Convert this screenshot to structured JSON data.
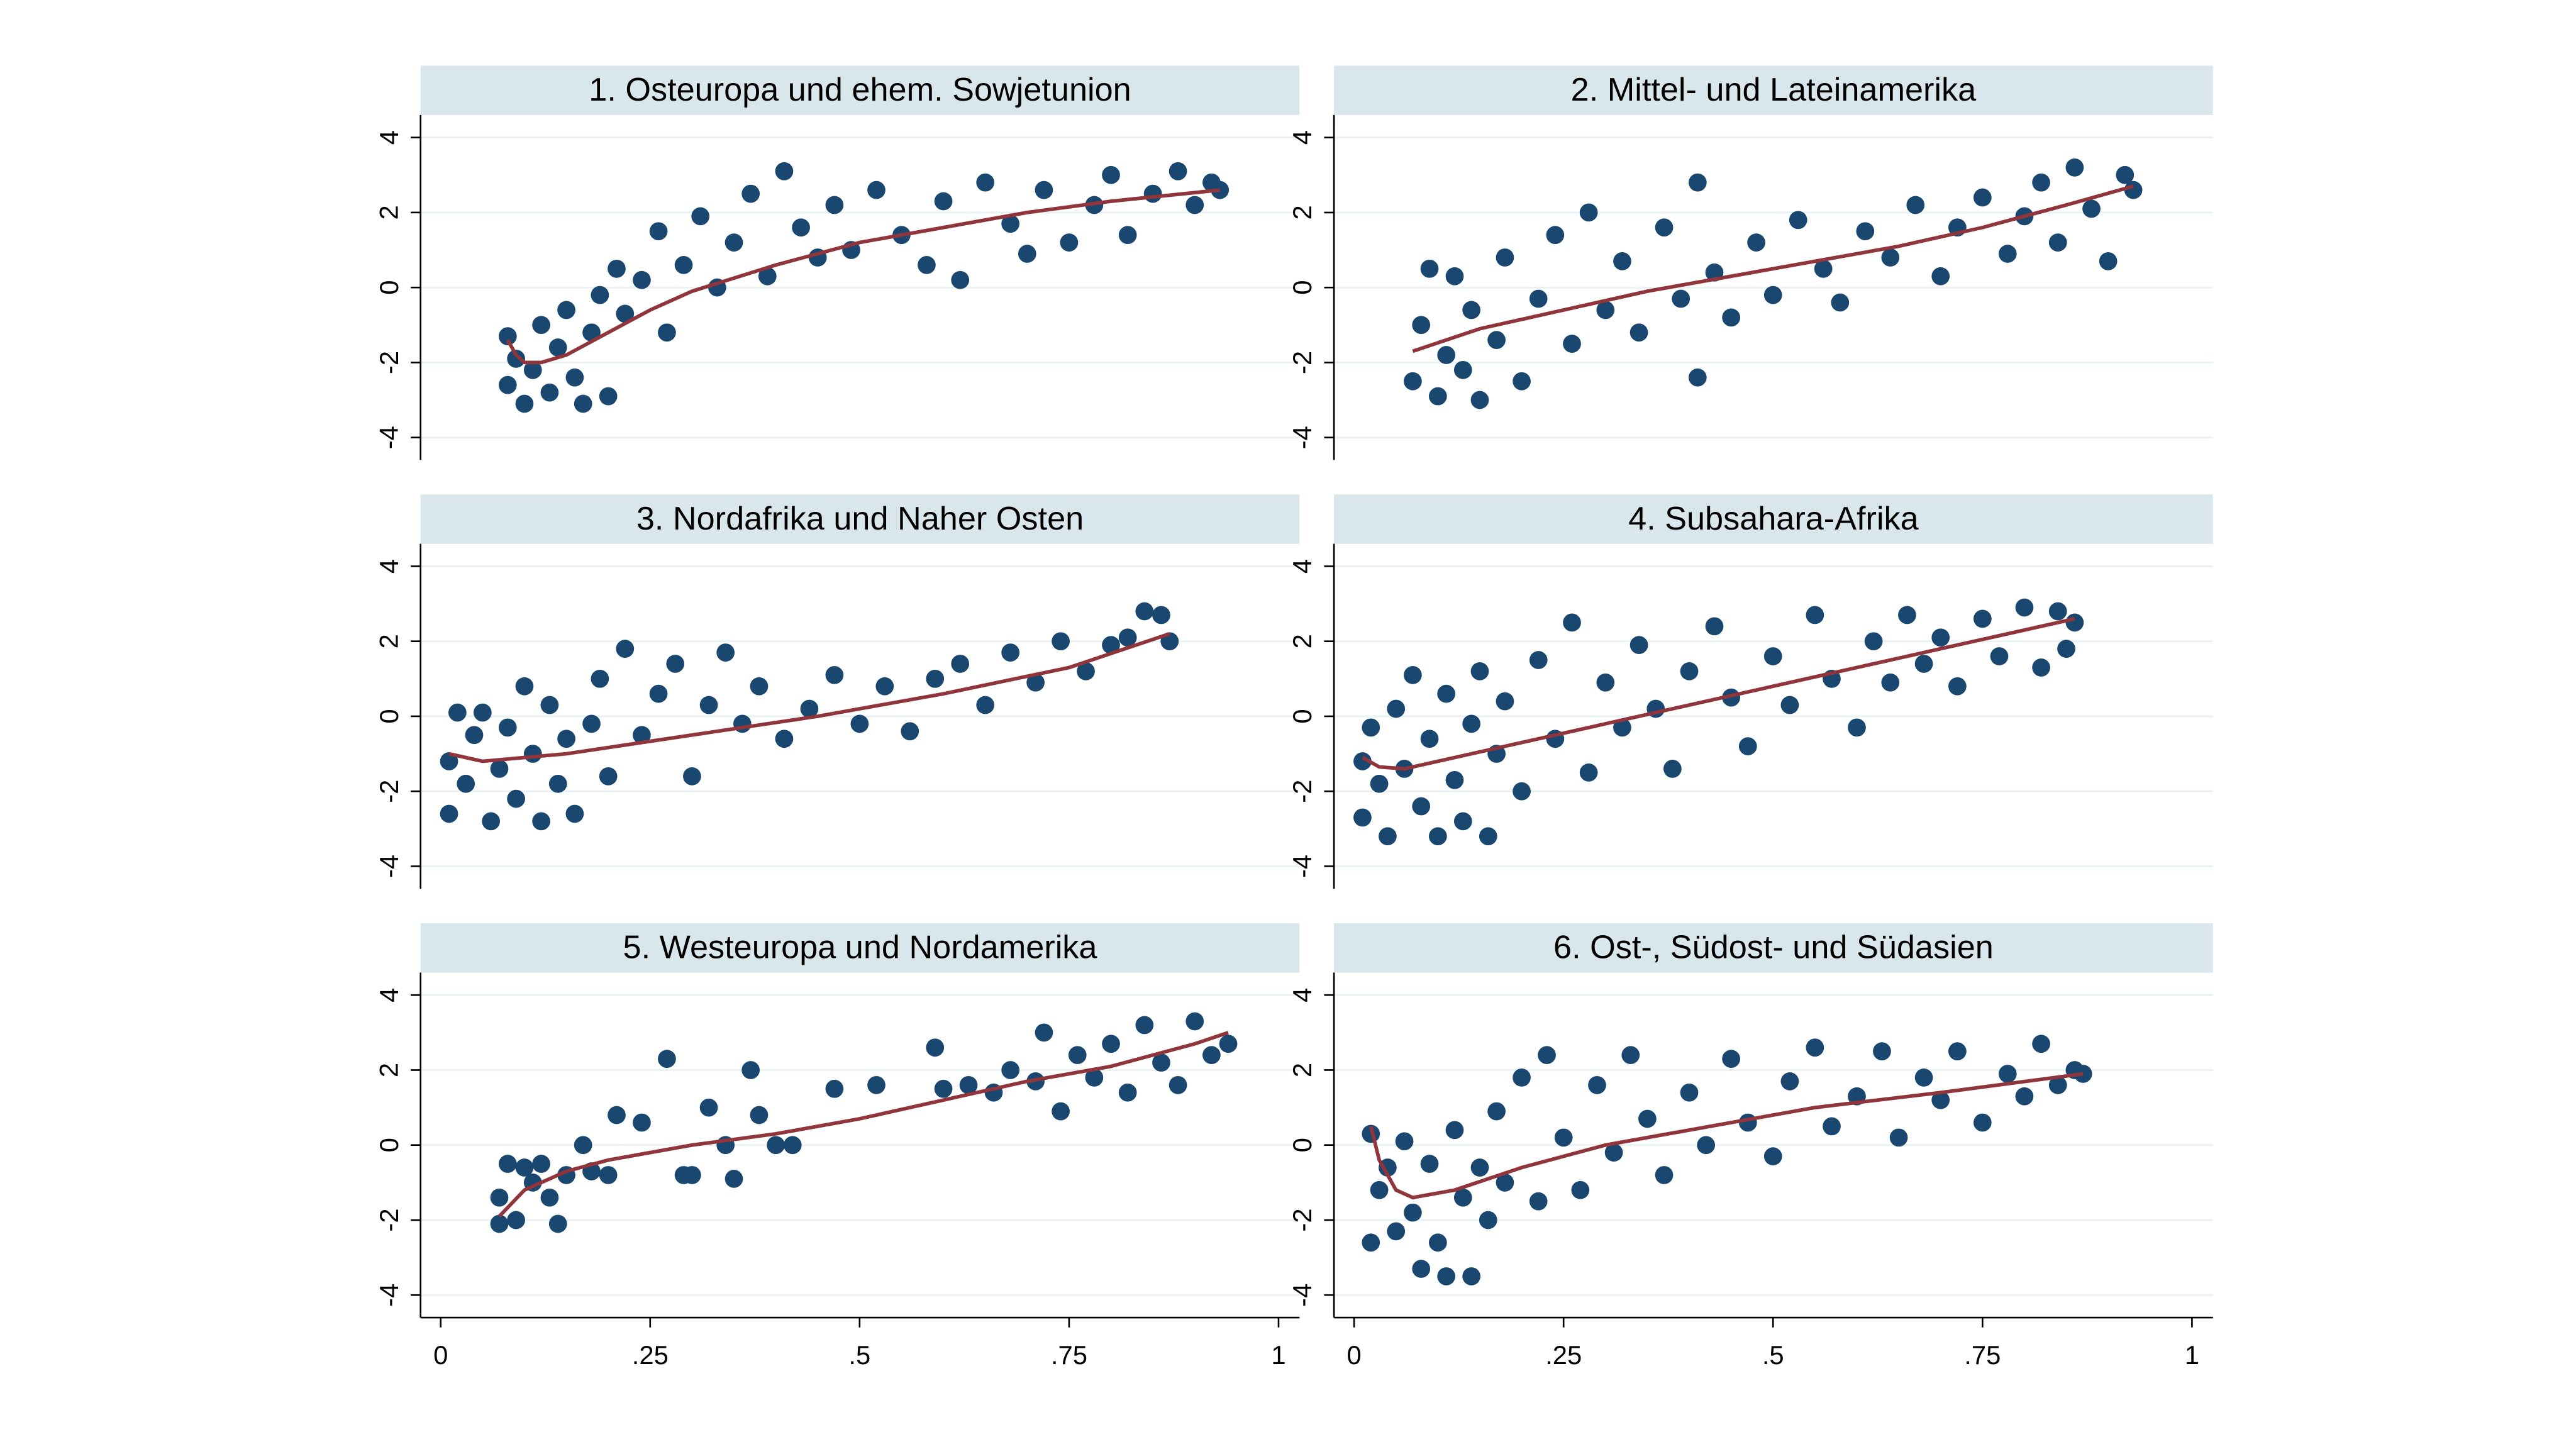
{
  "chart_data": [
    {
      "type": "scatter",
      "title": "1. Osteuropa und ehem. Sowjetunion",
      "color": "#1a476f",
      "fit_color": "#90353b",
      "grid": true,
      "xlim": [
        -0.024,
        1.025
      ],
      "ylim": [
        -4.6,
        4.6
      ],
      "yticks": [
        -4,
        -2,
        0,
        2,
        4
      ],
      "x": [
        0.08,
        0.08,
        0.09,
        0.1,
        0.11,
        0.12,
        0.13,
        0.14,
        0.15,
        0.16,
        0.17,
        0.18,
        0.19,
        0.2,
        0.21,
        0.22,
        0.24,
        0.26,
        0.27,
        0.29,
        0.31,
        0.33,
        0.35,
        0.37,
        0.39,
        0.41,
        0.43,
        0.45,
        0.47,
        0.49,
        0.52,
        0.55,
        0.58,
        0.6,
        0.62,
        0.65,
        0.68,
        0.7,
        0.72,
        0.75,
        0.78,
        0.8,
        0.82,
        0.85,
        0.88,
        0.9,
        0.92,
        0.93
      ],
      "values": [
        -1.3,
        -2.6,
        -1.9,
        -3.1,
        -2.2,
        -1.0,
        -2.8,
        -1.6,
        -0.6,
        -2.4,
        -3.1,
        -1.2,
        -0.2,
        -2.9,
        0.5,
        -0.7,
        0.2,
        1.5,
        -1.2,
        0.6,
        1.9,
        0.0,
        1.2,
        2.5,
        0.3,
        3.1,
        1.6,
        0.8,
        2.2,
        1.0,
        2.6,
        1.4,
        0.6,
        2.3,
        0.2,
        2.8,
        1.7,
        0.9,
        2.6,
        1.2,
        2.2,
        3.0,
        1.4,
        2.5,
        3.1,
        2.2,
        2.8,
        2.6
      ],
      "fit_x": [
        0.08,
        0.09,
        0.1,
        0.12,
        0.15,
        0.2,
        0.25,
        0.3,
        0.4,
        0.5,
        0.6,
        0.7,
        0.8,
        0.93
      ],
      "fit_values": [
        -1.4,
        -1.8,
        -2.0,
        -2.0,
        -1.8,
        -1.2,
        -0.6,
        -0.1,
        0.6,
        1.2,
        1.6,
        2.0,
        2.3,
        2.6
      ]
    },
    {
      "type": "scatter",
      "title": "2. Mittel- und Lateinamerika",
      "color": "#1a476f",
      "fit_color": "#90353b",
      "grid": true,
      "xlim": [
        -0.024,
        1.025
      ],
      "ylim": [
        -4.6,
        4.6
      ],
      "yticks": [
        -4,
        -2,
        0,
        2,
        4
      ],
      "x": [
        0.07,
        0.08,
        0.09,
        0.1,
        0.11,
        0.12,
        0.13,
        0.14,
        0.15,
        0.17,
        0.18,
        0.2,
        0.22,
        0.24,
        0.26,
        0.28,
        0.3,
        0.32,
        0.34,
        0.37,
        0.39,
        0.41,
        0.43,
        0.45,
        0.48,
        0.5,
        0.53,
        0.56,
        0.58,
        0.61,
        0.64,
        0.67,
        0.7,
        0.72,
        0.75,
        0.78,
        0.8,
        0.82,
        0.84,
        0.86,
        0.88,
        0.9,
        0.92,
        0.93,
        0.41
      ],
      "values": [
        -2.5,
        -1.0,
        0.5,
        -2.9,
        -1.8,
        0.3,
        -2.2,
        -0.6,
        -3.0,
        -1.4,
        0.8,
        -2.5,
        -0.3,
        1.4,
        -1.5,
        2.0,
        -0.6,
        0.7,
        -1.2,
        1.6,
        -0.3,
        2.8,
        0.4,
        -0.8,
        1.2,
        -0.2,
        1.8,
        0.5,
        -0.4,
        1.5,
        0.8,
        2.2,
        0.3,
        1.6,
        2.4,
        0.9,
        1.9,
        2.8,
        1.2,
        3.2,
        2.1,
        0.7,
        3.0,
        2.6,
        -2.4
      ],
      "fit_x": [
        0.07,
        0.15,
        0.25,
        0.35,
        0.45,
        0.55,
        0.65,
        0.75,
        0.85,
        0.93
      ],
      "fit_values": [
        -1.7,
        -1.1,
        -0.6,
        -0.1,
        0.3,
        0.7,
        1.1,
        1.6,
        2.2,
        2.7
      ]
    },
    {
      "type": "scatter",
      "title": "3. Nordafrika und Naher Osten",
      "color": "#1a476f",
      "fit_color": "#90353b",
      "grid": true,
      "xlim": [
        -0.024,
        1.025
      ],
      "ylim": [
        -4.6,
        4.6
      ],
      "yticks": [
        -4,
        -2,
        0,
        2,
        4
      ],
      "x": [
        0.01,
        0.01,
        0.02,
        0.03,
        0.04,
        0.05,
        0.06,
        0.07,
        0.08,
        0.09,
        0.1,
        0.11,
        0.12,
        0.13,
        0.14,
        0.15,
        0.16,
        0.18,
        0.19,
        0.2,
        0.22,
        0.24,
        0.26,
        0.28,
        0.3,
        0.32,
        0.34,
        0.36,
        0.38,
        0.41,
        0.44,
        0.47,
        0.5,
        0.53,
        0.56,
        0.59,
        0.62,
        0.65,
        0.68,
        0.71,
        0.74,
        0.77,
        0.8,
        0.82,
        0.84,
        0.86,
        0.87
      ],
      "values": [
        -1.2,
        -2.6,
        0.1,
        -1.8,
        -0.5,
        0.1,
        -2.8,
        -1.4,
        -0.3,
        -2.2,
        0.8,
        -1.0,
        -2.8,
        0.3,
        -1.8,
        -0.6,
        -2.6,
        -0.2,
        1.0,
        -1.6,
        1.8,
        -0.5,
        0.6,
        1.4,
        -1.6,
        0.3,
        1.7,
        -0.2,
        0.8,
        -0.6,
        0.2,
        1.1,
        -0.2,
        0.8,
        -0.4,
        1.0,
        1.4,
        0.3,
        1.7,
        0.9,
        2.0,
        1.2,
        1.9,
        2.1,
        2.8,
        2.7,
        2.0
      ],
      "fit_x": [
        0.01,
        0.05,
        0.15,
        0.3,
        0.45,
        0.6,
        0.75,
        0.87
      ],
      "fit_values": [
        -1.0,
        -1.2,
        -1.0,
        -0.5,
        0.0,
        0.6,
        1.3,
        2.2
      ]
    },
    {
      "type": "scatter",
      "title": "4. Subsahara-Afrika",
      "color": "#1a476f",
      "fit_color": "#90353b",
      "grid": true,
      "xlim": [
        -0.024,
        1.025
      ],
      "ylim": [
        -4.6,
        4.6
      ],
      "yticks": [
        -4,
        -2,
        0,
        2,
        4
      ],
      "x": [
        0.01,
        0.01,
        0.02,
        0.03,
        0.04,
        0.05,
        0.06,
        0.07,
        0.08,
        0.09,
        0.1,
        0.11,
        0.12,
        0.13,
        0.14,
        0.15,
        0.16,
        0.17,
        0.18,
        0.2,
        0.22,
        0.24,
        0.26,
        0.28,
        0.3,
        0.32,
        0.34,
        0.36,
        0.38,
        0.4,
        0.43,
        0.45,
        0.47,
        0.5,
        0.52,
        0.55,
        0.57,
        0.6,
        0.62,
        0.64,
        0.66,
        0.68,
        0.7,
        0.72,
        0.75,
        0.77,
        0.8,
        0.82,
        0.84,
        0.85,
        0.86
      ],
      "values": [
        -1.2,
        -2.7,
        -0.3,
        -1.8,
        -3.2,
        0.2,
        -1.4,
        1.1,
        -2.4,
        -0.6,
        -3.2,
        0.6,
        -1.7,
        -2.8,
        -0.2,
        1.2,
        -3.2,
        -1.0,
        0.4,
        -2.0,
        1.5,
        -0.6,
        2.5,
        -1.5,
        0.9,
        -0.3,
        1.9,
        0.2,
        -1.4,
        1.2,
        2.4,
        0.5,
        -0.8,
        1.6,
        0.3,
        2.7,
        1.0,
        -0.3,
        2.0,
        0.9,
        2.7,
        1.4,
        2.1,
        0.8,
        2.6,
        1.6,
        2.9,
        1.3,
        2.8,
        1.8,
        2.5
      ],
      "fit_x": [
        0.01,
        0.03,
        0.06,
        0.1,
        0.2,
        0.3,
        0.4,
        0.5,
        0.6,
        0.7,
        0.8,
        0.86
      ],
      "fit_values": [
        -1.1,
        -1.35,
        -1.4,
        -1.2,
        -0.7,
        -0.2,
        0.3,
        0.8,
        1.3,
        1.8,
        2.3,
        2.6
      ]
    },
    {
      "type": "scatter",
      "title": "5. Westeuropa und Nordamerika",
      "color": "#1a476f",
      "fit_color": "#90353b",
      "grid": true,
      "xlim": [
        -0.024,
        1.025
      ],
      "ylim": [
        -4.6,
        4.6
      ],
      "yticks": [
        -4,
        -2,
        0,
        2,
        4
      ],
      "xticks": [
        0,
        {
          "value": 0.25,
          "label": ".25"
        },
        {
          "value": 0.5,
          "label": ".5"
        },
        {
          "value": 0.75,
          "label": ".75"
        },
        1
      ],
      "x": [
        0.07,
        0.07,
        0.08,
        0.09,
        0.1,
        0.11,
        0.12,
        0.13,
        0.14,
        0.15,
        0.17,
        0.18,
        0.2,
        0.21,
        0.24,
        0.27,
        0.29,
        0.3,
        0.32,
        0.34,
        0.35,
        0.37,
        0.38,
        0.4,
        0.42,
        0.47,
        0.52,
        0.59,
        0.6,
        0.63,
        0.66,
        0.68,
        0.71,
        0.72,
        0.74,
        0.76,
        0.78,
        0.8,
        0.82,
        0.84,
        0.86,
        0.88,
        0.9,
        0.92,
        0.94
      ],
      "values": [
        -2.1,
        -1.4,
        -0.5,
        -2.0,
        -0.6,
        -1.0,
        -0.5,
        -1.4,
        -2.1,
        -0.8,
        0.0,
        -0.7,
        -0.8,
        0.8,
        0.6,
        2.3,
        -0.8,
        -0.8,
        1.0,
        0.0,
        -0.9,
        2.0,
        0.8,
        0.0,
        0.0,
        1.5,
        1.6,
        2.6,
        1.5,
        1.6,
        1.4,
        2.0,
        1.7,
        3.0,
        0.9,
        2.4,
        1.8,
        2.7,
        1.4,
        3.2,
        2.2,
        1.6,
        3.3,
        2.4,
        2.7
      ],
      "fit_x": [
        0.07,
        0.1,
        0.15,
        0.2,
        0.3,
        0.4,
        0.5,
        0.6,
        0.7,
        0.8,
        0.9,
        0.94
      ],
      "fit_values": [
        -1.9,
        -1.2,
        -0.7,
        -0.4,
        0.0,
        0.3,
        0.7,
        1.2,
        1.7,
        2.1,
        2.7,
        3.0
      ]
    },
    {
      "type": "scatter",
      "title": "6. Ost-, Südost- und Südasien",
      "color": "#1a476f",
      "fit_color": "#90353b",
      "grid": true,
      "xlim": [
        -0.024,
        1.025
      ],
      "ylim": [
        -4.6,
        4.6
      ],
      "yticks": [
        -4,
        -2,
        0,
        2,
        4
      ],
      "xticks": [
        0,
        {
          "value": 0.25,
          "label": ".25"
        },
        {
          "value": 0.5,
          "label": ".5"
        },
        {
          "value": 0.75,
          "label": ".75"
        },
        1
      ],
      "x": [
        0.02,
        0.02,
        0.03,
        0.04,
        0.05,
        0.06,
        0.07,
        0.08,
        0.09,
        0.1,
        0.11,
        0.12,
        0.13,
        0.14,
        0.15,
        0.16,
        0.17,
        0.18,
        0.2,
        0.22,
        0.23,
        0.25,
        0.27,
        0.29,
        0.31,
        0.33,
        0.35,
        0.37,
        0.4,
        0.42,
        0.45,
        0.47,
        0.5,
        0.52,
        0.55,
        0.57,
        0.6,
        0.63,
        0.65,
        0.68,
        0.7,
        0.72,
        0.75,
        0.78,
        0.8,
        0.82,
        0.84,
        0.86,
        0.87
      ],
      "values": [
        -2.6,
        0.3,
        -1.2,
        -0.6,
        -2.3,
        0.1,
        -1.8,
        -3.3,
        -0.5,
        -2.6,
        -3.5,
        0.4,
        -1.4,
        -3.5,
        -0.6,
        -2.0,
        0.9,
        -1.0,
        1.8,
        -1.5,
        2.4,
        0.2,
        -1.2,
        1.6,
        -0.2,
        2.4,
        0.7,
        -0.8,
        1.4,
        0.0,
        2.3,
        0.6,
        -0.3,
        1.7,
        2.6,
        0.5,
        1.3,
        2.5,
        0.2,
        1.8,
        1.2,
        2.5,
        0.6,
        1.9,
        1.3,
        2.7,
        1.6,
        2.0,
        1.9
      ],
      "fit_x": [
        0.02,
        0.03,
        0.05,
        0.07,
        0.12,
        0.2,
        0.3,
        0.45,
        0.55,
        0.7,
        0.87
      ],
      "fit_values": [
        0.5,
        -0.4,
        -1.2,
        -1.4,
        -1.2,
        -0.6,
        0.0,
        0.6,
        1.0,
        1.4,
        1.9
      ]
    }
  ]
}
